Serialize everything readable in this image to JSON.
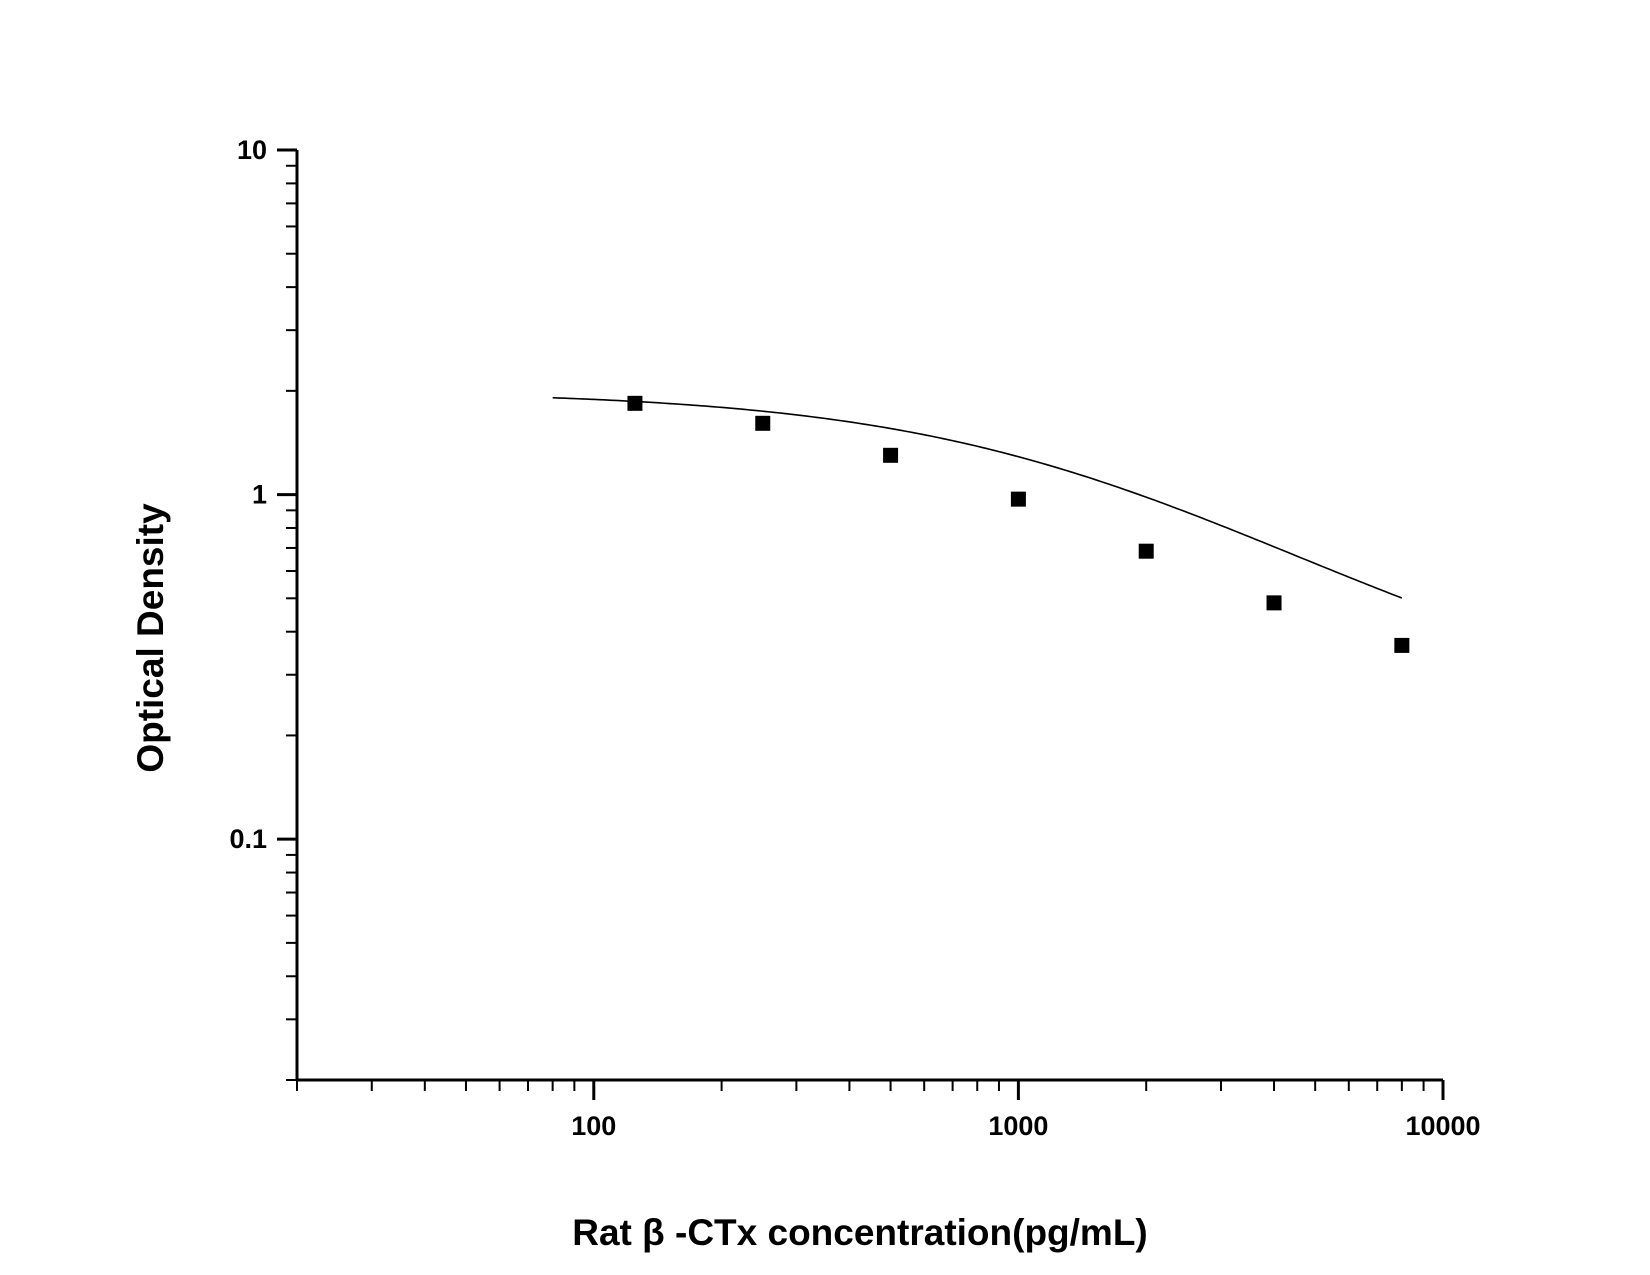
{
  "chart_data": {
    "type": "scatter",
    "xlabel": "Rat β -CTx concentration(pg/mL)",
    "ylabel": "Optical Density",
    "x_scale": "log",
    "y_scale": "log",
    "xlim": [
      20,
      10000
    ],
    "ylim": [
      0.02,
      10
    ],
    "x_ticks": [
      {
        "value": 100,
        "label": "100"
      },
      {
        "value": 1000,
        "label": "1000"
      },
      {
        "value": 10000,
        "label": "10000"
      }
    ],
    "y_ticks": [
      {
        "value": 0.1,
        "label": "0.1"
      },
      {
        "value": 1,
        "label": "1"
      },
      {
        "value": 10,
        "label": "10"
      }
    ],
    "grid": false,
    "legend": "none",
    "series": [
      {
        "marker": "square",
        "color": "#000000",
        "points": [
          {
            "x": 125,
            "y": 1.84
          },
          {
            "x": 250,
            "y": 1.61
          },
          {
            "x": 500,
            "y": 1.3
          },
          {
            "x": 1000,
            "y": 0.97
          },
          {
            "x": 2000,
            "y": 0.685
          },
          {
            "x": 4000,
            "y": 0.485
          },
          {
            "x": 8000,
            "y": 0.365
          }
        ]
      }
    ],
    "fit_curve": {
      "type": "four-parameter-logistic",
      "color": "#000000",
      "x_range": [
        80,
        8000
      ],
      "params": {
        "A": 2.0,
        "D": 0.22,
        "C": 1500,
        "B": 1.0
      }
    }
  }
}
